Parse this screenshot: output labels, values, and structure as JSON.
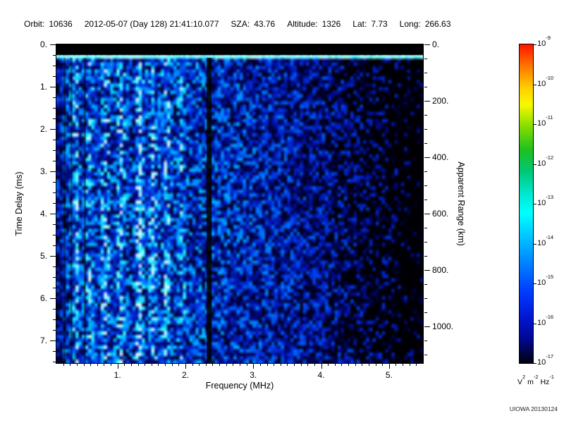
{
  "header": {
    "fields": [
      {
        "name": "orbit",
        "label": "Orbit:",
        "value": "10636"
      },
      {
        "name": "datetime",
        "label": "",
        "value": "2012-05-07 (Day 128) 21:41:10.077"
      },
      {
        "name": "sza",
        "label": "SZA:",
        "value": "43.76"
      },
      {
        "name": "altitude",
        "label": "Altitude:",
        "value": "1326"
      },
      {
        "name": "latitude",
        "label": "Lat:",
        "value": "7.73"
      },
      {
        "name": "longitude",
        "label": "Long:",
        "value": "266.63"
      }
    ]
  },
  "chart_data": {
    "type": "heatmap",
    "title": "",
    "description": "Radar sounder ionogram: received spectral density vs sounding frequency and echo time delay; mostly blue/cyan noise field, black band at zero delay with bright surface echo line, dark vertical gap near 2.35 MHz, black dropout patches above ~4 MHz",
    "xlabel": "Frequency (MHz)",
    "ylabel_left": "Time Delay (ms)",
    "ylabel_right": "Apparent Range (km)",
    "x_range_mhz": [
      0.1,
      5.5
    ],
    "x_ticks": [
      {
        "v": 1,
        "label": "1."
      },
      {
        "v": 2,
        "label": "2."
      },
      {
        "v": 3,
        "label": "3."
      },
      {
        "v": 4,
        "label": "4."
      },
      {
        "v": 5,
        "label": "5."
      }
    ],
    "x_minor_step": 0.1,
    "y_range_ms": [
      0,
      7.54
    ],
    "y_ticks": [
      {
        "v": 0,
        "label": "0."
      },
      {
        "v": 1,
        "label": "1."
      },
      {
        "v": 2,
        "label": "2."
      },
      {
        "v": 3,
        "label": "3."
      },
      {
        "v": 4,
        "label": "4."
      },
      {
        "v": 5,
        "label": "5."
      },
      {
        "v": 6,
        "label": "6."
      },
      {
        "v": 7,
        "label": "7."
      }
    ],
    "y_minor_step": 0.25,
    "right_axis_km_per_ms": 150,
    "right_ticks": [
      {
        "v": 0,
        "label": "0."
      },
      {
        "v": 200,
        "label": "200."
      },
      {
        "v": 400,
        "label": "400."
      },
      {
        "v": 600,
        "label": "600."
      },
      {
        "v": 800,
        "label": "800."
      },
      {
        "v": 1000,
        "label": "1000."
      }
    ],
    "right_minor_step": 50,
    "grid": false,
    "colorbar": {
      "base": "10",
      "exponents": [
        -9,
        -10,
        -11,
        -12,
        -13,
        -14,
        -15,
        -16,
        -17
      ],
      "scale_max": "1e-9",
      "scale_min": "1e-17",
      "unit_parts": [
        [
          "V",
          "2"
        ],
        [
          "m",
          "-2"
        ],
        [
          "Hz",
          "-1"
        ]
      ],
      "gradient": [
        "#ff1400 0%",
        "#ff7800 7%",
        "#ffd200 14%",
        "#f8f800 19%",
        "#80dc00 26%",
        "#20c020 33%",
        "#00c878 40%",
        "#00e8d0 47%",
        "#00ffff 53%",
        "#00c0ff 61%",
        "#0080ff 69%",
        "#0040ff 77%",
        "#0018d8 85%",
        "#000898 92%",
        "#000440 97%",
        "#000010 100%"
      ]
    },
    "spectrogram": {
      "seed": 1337,
      "grid_cells": [
        116,
        90
      ],
      "colormap": [
        [
          0,
          "#000000"
        ],
        [
          0.1,
          "#000028"
        ],
        [
          0.22,
          "#000a8c"
        ],
        [
          0.38,
          "#0030e0"
        ],
        [
          0.55,
          "#0080ff"
        ],
        [
          0.7,
          "#00c8ff"
        ],
        [
          0.84,
          "#40ffff"
        ],
        [
          1,
          "#d8ffff"
        ]
      ],
      "top_black_band_ms": 0.25,
      "surface_echo_ms": 0.3,
      "gap_mhz": 2.35,
      "dark_lines_mhz": [
        0.22,
        0.32,
        0.52
      ],
      "bright_stripes": [
        [
          0.38,
          0.22
        ],
        [
          0.58,
          0.2
        ],
        [
          0.82,
          0.3
        ],
        [
          1.05,
          0.26
        ],
        [
          1.32,
          0.42
        ],
        [
          1.52,
          0.3
        ],
        [
          1.72,
          0.26
        ],
        [
          1.95,
          0.18
        ]
      ],
      "fade_start_mhz": 3.7,
      "patch_start_mhz": 4.0
    }
  },
  "footer": {
    "credit": "UIOWA 20130124"
  }
}
